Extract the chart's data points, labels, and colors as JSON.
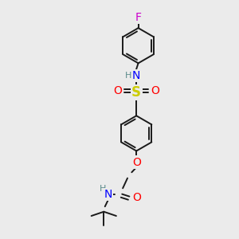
{
  "bg_color": "#ebebeb",
  "bond_color": "#1a1a1a",
  "atom_colors": {
    "N": "#0000ff",
    "O": "#ff0000",
    "S": "#cccc00",
    "F": "#cc00cc",
    "H_label": "#5a8a8a",
    "C": "#1a1a1a"
  },
  "font_size_atom": 10,
  "font_size_small": 8,
  "line_width": 1.4
}
